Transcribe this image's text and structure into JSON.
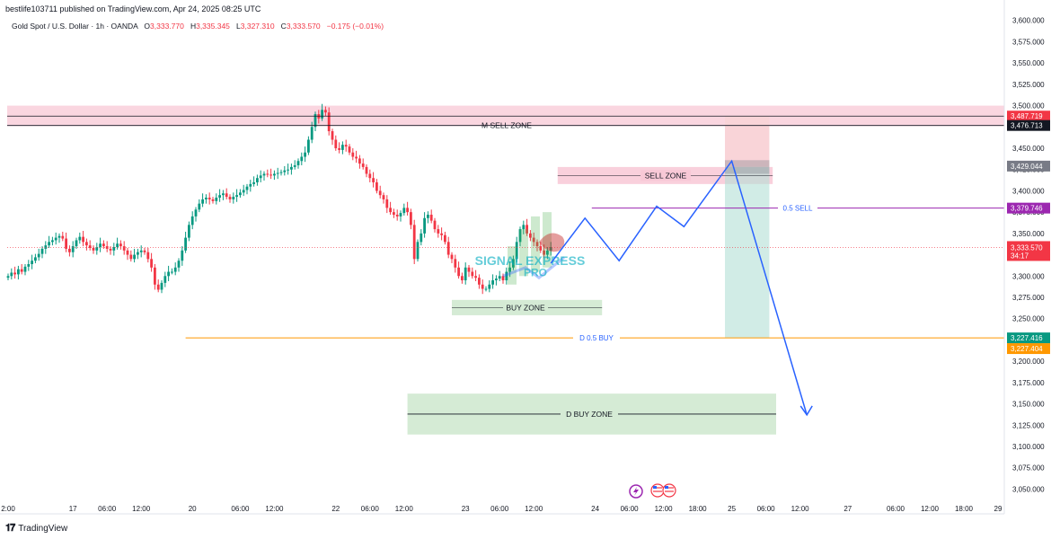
{
  "header": {
    "published": "bestlife103711 published on TradingView.com, Apr 24, 2025 08:25 UTC"
  },
  "symbol": {
    "name": "Gold Spot / U.S. Dollar · 1h · OANDA",
    "open_label": "O",
    "open": "3,333.770",
    "high_label": "H",
    "high": "3,335.345",
    "low_label": "L",
    "low": "3,327.310",
    "close_label": "C",
    "close": "3,333.570",
    "change": "−0.175 (−0.01%)"
  },
  "footer": {
    "brand": "TradingView"
  },
  "colors": {
    "up": "#089981",
    "down": "#f23645",
    "path": "#2962ff",
    "sell_zone": "#f8c8d6",
    "buy_zone": "#d5ebd5",
    "target_zone": "#b2dfd6",
    "stop_zone": "#f9d4d8",
    "purple": "#9c27b0",
    "orange": "#ff9800"
  },
  "chart_data": {
    "type": "candlestick",
    "symbol": "Gold Spot / U.S. Dollar",
    "interval": "1h",
    "ylim": [
      3042,
      3605
    ],
    "y_ticks": [
      3050,
      3075,
      3100,
      3125,
      3150,
      3175,
      3200,
      3225,
      3250,
      3275,
      3300,
      3325,
      3350,
      3375,
      3400,
      3425,
      3450,
      3475,
      3500,
      3525,
      3550,
      3575,
      3600
    ],
    "y_tick_labels": [
      "3,050.000",
      "3,075.000",
      "3,100.000",
      "3,125.000",
      "3,150.000",
      "3,175.000",
      "3,200.000",
      "3,225.000",
      "3,250.000",
      "3,275.000",
      "3,300.000",
      "3,325.000",
      "3,350.000",
      "3,375.000",
      "3,400.000",
      "3,425.000",
      "3,450.000",
      "3,475.000",
      "3,500.000",
      "3,525.000",
      "3,550.000",
      "3,575.000",
      "3,600.000"
    ],
    "x_ticks": [
      {
        "label": "2:00",
        "t": 0
      },
      {
        "label": "17",
        "t": 19
      },
      {
        "label": "06:00",
        "t": 29
      },
      {
        "label": "12:00",
        "t": 39
      },
      {
        "label": "20",
        "t": 54
      },
      {
        "label": "06:00",
        "t": 68
      },
      {
        "label": "12:00",
        "t": 78
      },
      {
        "label": "22",
        "t": 96
      },
      {
        "label": "06:00",
        "t": 106
      },
      {
        "label": "12:00",
        "t": 116
      },
      {
        "label": "23",
        "t": 134
      },
      {
        "label": "06:00",
        "t": 144
      },
      {
        "label": "12:00",
        "t": 154
      },
      {
        "label": "24",
        "t": 172
      },
      {
        "label": "06:00",
        "t": 182
      },
      {
        "label": "12:00",
        "t": 192
      },
      {
        "label": "18:00",
        "t": 202
      },
      {
        "label": "25",
        "t": 212
      },
      {
        "label": "06:00",
        "t": 222
      },
      {
        "label": "12:00",
        "t": 232
      },
      {
        "label": "27",
        "t": 246
      },
      {
        "label": "06:00",
        "t": 260
      },
      {
        "label": "12:00",
        "t": 270
      },
      {
        "label": "18:00",
        "t": 280
      },
      {
        "label": "29",
        "t": 290
      }
    ],
    "candles_close": [
      3300,
      3304,
      3302,
      3308,
      3305,
      3311,
      3314,
      3318,
      3322,
      3326,
      3332,
      3336,
      3340,
      3342,
      3345,
      3347,
      3344,
      3332,
      3328,
      3335,
      3342,
      3346,
      3340,
      3336,
      3333,
      3330,
      3334,
      3338,
      3335,
      3332,
      3330,
      3334,
      3338,
      3335,
      3330,
      3325,
      3320,
      3325,
      3328,
      3330,
      3328,
      3320,
      3310,
      3290,
      3284,
      3292,
      3300,
      3305,
      3305,
      3310,
      3318,
      3330,
      3345,
      3360,
      3370,
      3378,
      3385,
      3390,
      3392,
      3390,
      3388,
      3392,
      3395,
      3397,
      3393,
      3390,
      3393,
      3395,
      3398,
      3401,
      3405,
      3408,
      3410,
      3415,
      3418,
      3420,
      3419,
      3418,
      3420,
      3421,
      3422,
      3424,
      3425,
      3428,
      3430,
      3435,
      3440,
      3445,
      3460,
      3475,
      3490,
      3485,
      3495,
      3492,
      3470,
      3460,
      3450,
      3448,
      3454,
      3452,
      3445,
      3440,
      3438,
      3432,
      3428,
      3420,
      3415,
      3410,
      3400,
      3395,
      3390,
      3380,
      3375,
      3372,
      3370,
      3374,
      3380,
      3375,
      3360,
      3320,
      3340,
      3350,
      3368,
      3372,
      3365,
      3355,
      3350,
      3348,
      3340,
      3325,
      3320,
      3310,
      3300,
      3295,
      3310,
      3305,
      3300,
      3298,
      3290,
      3285,
      3285,
      3290,
      3295,
      3297,
      3300,
      3295,
      3305,
      3310,
      3320,
      3340,
      3355,
      3360,
      3350,
      3345,
      3340,
      3335,
      3330,
      3325,
      3330,
      3334
    ],
    "horizontal_levels": [
      {
        "label": "M SELL ZONE",
        "value": 3476.713,
        "badge": "3,476.713"
      },
      {
        "label": "",
        "value": 3487.719,
        "badge": "3,487.719"
      },
      {
        "label": "0.5 SELL",
        "value": 3379.746,
        "badge": "3,379.746"
      },
      {
        "label": "D 0.5 BUY",
        "value": 3227.416,
        "badge": "3,227.416"
      },
      {
        "label": "",
        "value": 3227.404,
        "badge": "3,227.404"
      },
      {
        "label": "",
        "value": 3429.044,
        "badge": "3,429.044"
      }
    ],
    "zones": [
      {
        "label": "M SELL ZONE",
        "top": 3500,
        "bottom": 3476
      },
      {
        "label": "SELL ZONE",
        "top": 3428,
        "bottom": 3408
      },
      {
        "label": "BUY ZONE",
        "top": 3272,
        "bottom": 3254
      },
      {
        "label": "D BUY ZONE",
        "top": 3162,
        "bottom": 3114
      }
    ],
    "current_price": {
      "value": 3333.57,
      "badge": "3,333.570",
      "countdown": "34:17"
    },
    "annotations": [
      "0.5 SELL",
      "D 0.5 BUY",
      "SELL ZONE",
      "BUY ZONE",
      "D BUY ZONE",
      "M SELL ZONE"
    ],
    "projection_path": [
      {
        "t": 159,
        "p": 3315
      },
      {
        "t": 169,
        "p": 3368
      },
      {
        "t": 179,
        "p": 3318
      },
      {
        "t": 190,
        "p": 3382
      },
      {
        "t": 198,
        "p": 3358
      },
      {
        "t": 212,
        "p": 3435
      },
      {
        "t": 234,
        "p": 3137
      }
    ],
    "grid": false,
    "legend": "none"
  },
  "watermark": {
    "line1": "SIGNAL EXPRESS",
    "line2": "PRO"
  }
}
